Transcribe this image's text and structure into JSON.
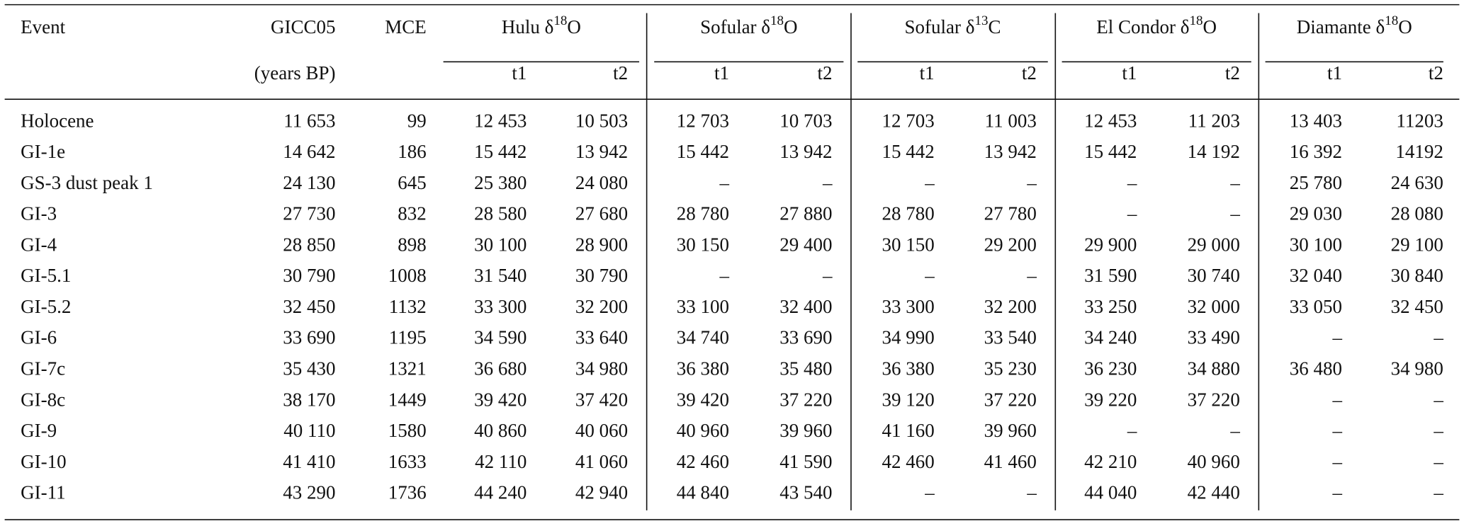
{
  "table": {
    "columns": [
      {
        "label": "Event"
      },
      {
        "label": "GICC05",
        "unit": "(years BP)"
      },
      {
        "label": "MCE"
      }
    ],
    "groups": [
      {
        "prefix": "Hulu δ",
        "sup": "18",
        "suffix": "O",
        "subcolumns": [
          "t1",
          "t2"
        ]
      },
      {
        "prefix": "Sofular δ",
        "sup": "18",
        "suffix": "O",
        "subcolumns": [
          "t1",
          "t2"
        ]
      },
      {
        "prefix": "Sofular δ",
        "sup": "13",
        "suffix": "C",
        "subcolumns": [
          "t1",
          "t2"
        ]
      },
      {
        "prefix": "El Condor δ",
        "sup": "18",
        "suffix": "O",
        "subcolumns": [
          "t1",
          "t2"
        ]
      },
      {
        "prefix": "Diamante δ",
        "sup": "18",
        "suffix": "O",
        "subcolumns": [
          "t1",
          "t2"
        ]
      }
    ],
    "rows": [
      [
        "Holocene",
        "11 653",
        "99",
        "12 453",
        "10 503",
        "12 703",
        "10 703",
        "12 703",
        "11 003",
        "12 453",
        "11 203",
        "13 403",
        "11203"
      ],
      [
        "GI-1e",
        "14 642",
        "186",
        "15 442",
        "13 942",
        "15 442",
        "13 942",
        "15 442",
        "13 942",
        "15 442",
        "14 192",
        "16 392",
        "14192"
      ],
      [
        "GS-3 dust peak 1",
        "24 130",
        "645",
        "25 380",
        "24 080",
        "–",
        "–",
        "–",
        "–",
        "–",
        "–",
        "25 780",
        "24 630"
      ],
      [
        "GI-3",
        "27 730",
        "832",
        "28 580",
        "27 680",
        "28 780",
        "27 880",
        "28 780",
        "27 780",
        "–",
        "–",
        "29 030",
        "28 080"
      ],
      [
        "GI-4",
        "28 850",
        "898",
        "30 100",
        "28 900",
        "30 150",
        "29 400",
        "30 150",
        "29 200",
        "29 900",
        "29 000",
        "30 100",
        "29 100"
      ],
      [
        "GI-5.1",
        "30 790",
        "1008",
        "31 540",
        "30 790",
        "–",
        "–",
        "–",
        "–",
        "31 590",
        "30 740",
        "32 040",
        "30 840"
      ],
      [
        "GI-5.2",
        "32 450",
        "1132",
        "33 300",
        "32 200",
        "33 100",
        "32 400",
        "33 300",
        "32 200",
        "33 250",
        "32 000",
        "33 050",
        "32 450"
      ],
      [
        "GI-6",
        "33 690",
        "1195",
        "34 590",
        "33 640",
        "34 740",
        "33 690",
        "34 990",
        "33 540",
        "34 240",
        "33 490",
        "–",
        "–"
      ],
      [
        "GI-7c",
        "35 430",
        "1321",
        "36 680",
        "34 980",
        "36 380",
        "35 480",
        "36 380",
        "35 230",
        "36 230",
        "34 880",
        "36 480",
        "34 980"
      ],
      [
        "GI-8c",
        "38 170",
        "1449",
        "39 420",
        "37 420",
        "39 420",
        "37 220",
        "39 120",
        "37 220",
        "39 220",
        "37 220",
        "–",
        "–"
      ],
      [
        "GI-9",
        "40 110",
        "1580",
        "40 860",
        "40 060",
        "40 960",
        "39 960",
        "41 160",
        "39 960",
        "–",
        "–",
        "–",
        "–"
      ],
      [
        "GI-10",
        "41 410",
        "1633",
        "42 110",
        "41 060",
        "42 460",
        "41 590",
        "42 460",
        "41 460",
        "42 210",
        "40 960",
        "–",
        "–"
      ],
      [
        "GI-11",
        "43 290",
        "1736",
        "44 240",
        "42 940",
        "44 840",
        "43 540",
        "–",
        "–",
        "44 040",
        "42 440",
        "–",
        "–"
      ]
    ]
  }
}
